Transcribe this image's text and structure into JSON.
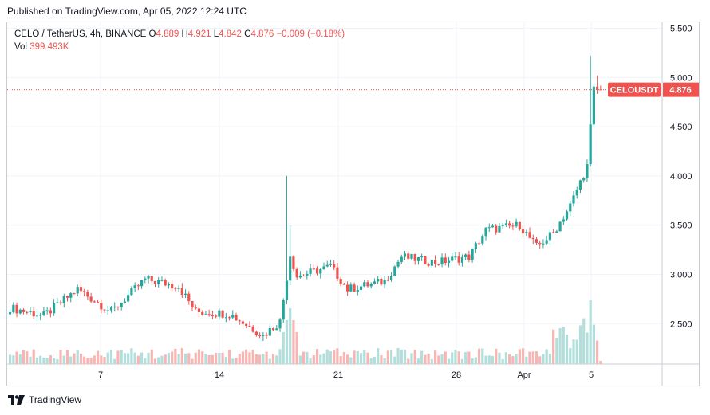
{
  "header": {
    "published": "Published on TradingView.com, Apr 05, 2022 12:24 UTC"
  },
  "legend": {
    "symbol": "CELO / TetherUS, 4h, BINANCE",
    "o_label": "O",
    "o_value": "4.889",
    "h_label": "H",
    "h_value": "4.921",
    "l_label": "L",
    "l_value": "4.842",
    "c_label": "C",
    "c_value": "4.876",
    "change": "−0.009 (−0.18%)",
    "vol_label": "Vol",
    "vol_value": "399.493K"
  },
  "price_tag": {
    "label": "CELOUSDT",
    "value": "4.876"
  },
  "footer": {
    "brand": "TradingView"
  },
  "colors": {
    "up": "#26a69a",
    "down": "#ef5350",
    "vol_up": "#b2dfdb",
    "vol_down": "#f7b6b4",
    "grid": "#f0f3fa",
    "last_price": "#ef5350"
  },
  "chart_data": {
    "type": "candlestick",
    "title": "CELO / TetherUS, 4h, BINANCE",
    "ylim": [
      2.1,
      5.55
    ],
    "y_ticks": [
      "5.500",
      "5.000",
      "4.500",
      "4.000",
      "3.500",
      "3.000",
      "2.500"
    ],
    "x_ticks": [
      "7",
      "14",
      "21",
      "28",
      "Apr",
      "5"
    ],
    "last_price": 4.876,
    "keypoints": [
      {
        "t": "Mar 1",
        "price": 2.66
      },
      {
        "t": "Mar 3",
        "price": 2.58
      },
      {
        "t": "Mar 5",
        "price": 2.85
      },
      {
        "t": "Mar 7",
        "price": 2.62
      },
      {
        "t": "Mar 9",
        "price": 2.95
      },
      {
        "t": "Mar 11",
        "price": 2.88
      },
      {
        "t": "Mar 12",
        "price": 2.62
      },
      {
        "t": "Mar 14",
        "price": 2.6
      },
      {
        "t": "Mar 16",
        "price": 2.38
      },
      {
        "t": "Mar 17",
        "price": 2.52
      },
      {
        "t": "Mar 17 12:00",
        "price": 3.2
      },
      {
        "t": "Mar 18",
        "price": 2.98
      },
      {
        "t": "Mar 20",
        "price": 3.08
      },
      {
        "t": "Mar 21",
        "price": 2.85
      },
      {
        "t": "Mar 23",
        "price": 2.93
      },
      {
        "t": "Mar 24",
        "price": 3.18
      },
      {
        "t": "Mar 26",
        "price": 3.12
      },
      {
        "t": "Mar 28",
        "price": 3.18
      },
      {
        "t": "Mar 29",
        "price": 3.45
      },
      {
        "t": "Mar 31",
        "price": 3.5
      },
      {
        "t": "Apr 1",
        "price": 3.28
      },
      {
        "t": "Apr 2",
        "price": 3.42
      },
      {
        "t": "Apr 3",
        "price": 3.7
      },
      {
        "t": "Apr 4",
        "price": 4.1
      },
      {
        "t": "Apr 4 12:00",
        "price": 4.88
      },
      {
        "t": "Apr 5",
        "price": 4.876
      }
    ],
    "volume_max": "high"
  }
}
